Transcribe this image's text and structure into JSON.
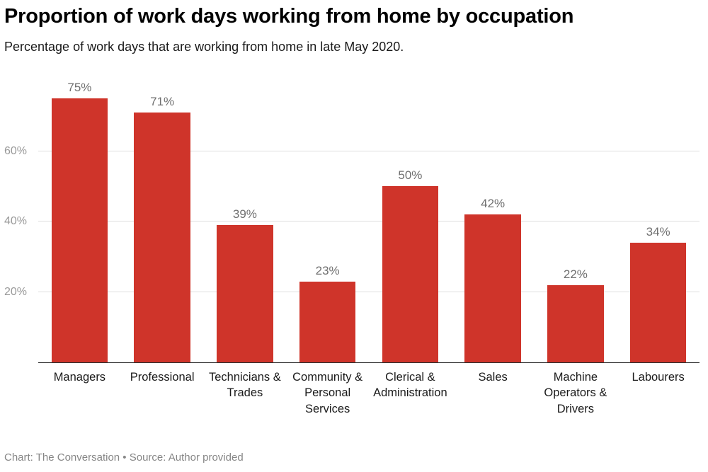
{
  "header": {
    "title": "Proportion of work days working from home by occupation",
    "subtitle": "Percentage of work days that are working from home in late May 2020."
  },
  "chart_data": {
    "type": "bar",
    "categories": [
      "Managers",
      "Professional",
      "Technicians & Trades",
      "Community & Personal Services",
      "Clerical & Administration",
      "Sales",
      "Machine Operators & Drivers",
      "Labourers"
    ],
    "values": [
      75,
      71,
      39,
      23,
      50,
      42,
      22,
      34
    ],
    "value_labels": [
      "75%",
      "71%",
      "39%",
      "23%",
      "50%",
      "42%",
      "22%",
      "34%"
    ],
    "title": "Proportion of work days working from home by occupation",
    "xlabel": "",
    "ylabel": "",
    "ylim": [
      0,
      84
    ],
    "yticks": [
      20,
      40,
      60
    ],
    "ytick_labels": [
      "20%",
      "40%",
      "60%"
    ],
    "grid": true,
    "legend": "none",
    "colors": {
      "bar": "#cf342a",
      "value_label": "#6f6f6f",
      "ytick_label": "#999999",
      "gridline": "#dedede",
      "axis_line": "#2e2e2e"
    }
  },
  "footer": {
    "credit": "Chart: The Conversation • Source: Author provided"
  }
}
